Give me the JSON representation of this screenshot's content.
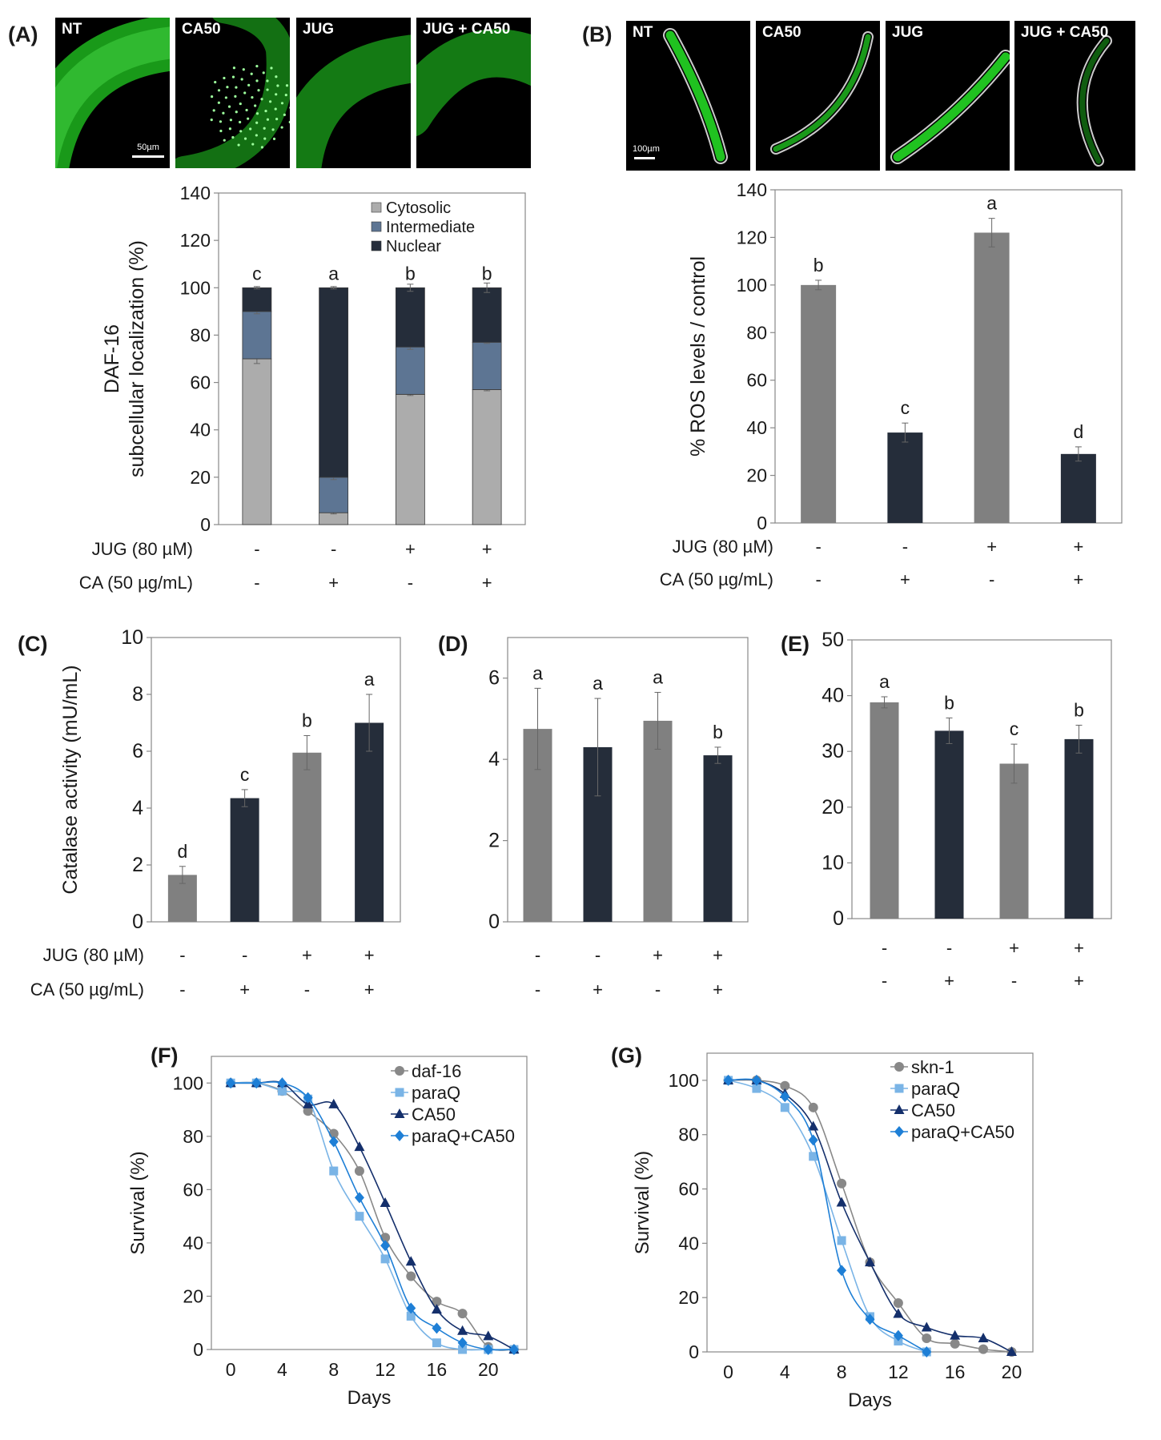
{
  "panel_letters": {
    "A": "(A)",
    "B": "(B)",
    "C": "(C)",
    "D": "(D)",
    "E": "(E)",
    "F": "(F)",
    "G": "(G)"
  },
  "colors": {
    "cytosolic": "#acacac",
    "intermediate": "#5d7593",
    "nuclear": "#252d3a",
    "gray_bar": "#808080",
    "dark_bar": "#252d3a",
    "daf16": "#888888",
    "paraQ": "#7ab4e6",
    "CA50": "#142f6b",
    "paraQCA50": "#1e7fd6",
    "skn1": "#888888",
    "green": "#22cc22"
  },
  "micrographs": {
    "A": {
      "labels": [
        "NT",
        "CA50",
        "JUG",
        "JUG + CA50"
      ],
      "scale_bar": "50µm"
    },
    "B": {
      "labels": [
        "NT",
        "CA50",
        "JUG",
        "JUG + CA50"
      ],
      "scale_bar": "100µm"
    }
  },
  "treatments": {
    "jug_label": "JUG (80 µM)",
    "ca_label": "CA (50 µg/mL)",
    "jug": [
      "-",
      "-",
      "+",
      "+"
    ],
    "ca": [
      "-",
      "+",
      "-",
      "+"
    ]
  },
  "chart_data": [
    {
      "id": "A",
      "type": "bar",
      "stacked": true,
      "ylabel": "DAF-16 subcellular localization (%)",
      "ylabel_lines": [
        "DAF-16",
        "subcellular localization (%)"
      ],
      "ylim": [
        0,
        140
      ],
      "yticks": [
        0,
        20,
        40,
        60,
        80,
        100,
        120,
        140
      ],
      "legend": [
        "Cytosolic",
        "Intermediate",
        "Nuclear"
      ],
      "series": [
        {
          "name": "Cytosolic",
          "values": [
            70,
            5,
            55,
            57
          ],
          "errors": [
            2,
            0.5,
            0.5,
            0.5
          ]
        },
        {
          "name": "Intermediate",
          "values": [
            20,
            15,
            20,
            20
          ],
          "errors": [
            1,
            1,
            1,
            0.5
          ]
        },
        {
          "name": "Nuclear",
          "values": [
            10,
            80,
            25,
            23
          ],
          "errors": [
            0.5,
            0.5,
            1.5,
            2
          ]
        }
      ],
      "letters": [
        "c",
        "a",
        "b",
        "b"
      ]
    },
    {
      "id": "B",
      "type": "bar",
      "ylabel": "% ROS levels / control",
      "ylim": [
        0,
        140
      ],
      "yticks": [
        0,
        20,
        40,
        60,
        80,
        100,
        120,
        140
      ],
      "values": [
        100,
        38,
        122,
        29
      ],
      "errors": [
        2,
        4,
        6,
        3
      ],
      "bar_colors": [
        "gray",
        "dark",
        "gray",
        "dark"
      ],
      "letters": [
        "b",
        "c",
        "a",
        "d"
      ]
    },
    {
      "id": "C",
      "type": "bar",
      "ylabel": "Catalase activity (mU/mL)",
      "ylim": [
        0,
        10
      ],
      "yticks": [
        0,
        2,
        4,
        6,
        8,
        10
      ],
      "values": [
        1.65,
        4.35,
        5.95,
        7.0
      ],
      "errors": [
        0.3,
        0.3,
        0.6,
        1.0
      ],
      "bar_colors": [
        "gray",
        "dark",
        "gray",
        "dark"
      ],
      "letters": [
        "d",
        "c",
        "b",
        "a"
      ]
    },
    {
      "id": "D",
      "type": "bar",
      "ylabel": "",
      "ylim": [
        0,
        7
      ],
      "yticks": [
        0,
        2,
        4,
        6
      ],
      "values": [
        4.75,
        4.3,
        4.95,
        4.1
      ],
      "errors": [
        1.0,
        1.2,
        0.7,
        0.2
      ],
      "bar_colors": [
        "gray",
        "dark",
        "gray",
        "dark"
      ],
      "letters": [
        "a",
        "a",
        "a",
        "b"
      ]
    },
    {
      "id": "E",
      "type": "bar",
      "ylabel": "",
      "ylim": [
        0,
        50
      ],
      "yticks": [
        0,
        10,
        20,
        30,
        40,
        50
      ],
      "values": [
        38.8,
        33.7,
        27.8,
        32.2
      ],
      "errors": [
        1.0,
        2.3,
        3.5,
        2.5
      ],
      "bar_colors": [
        "gray",
        "dark",
        "gray",
        "dark"
      ],
      "letters": [
        "a",
        "b",
        "c",
        "b"
      ]
    },
    {
      "id": "F",
      "type": "line",
      "xlabel": "Days",
      "ylabel": "Survival (%)",
      "xlim": [
        -1.5,
        23
      ],
      "ylim": [
        0,
        110
      ],
      "xticks": [
        0,
        4,
        8,
        12,
        16,
        20
      ],
      "yticks": [
        0,
        20,
        40,
        60,
        80,
        100
      ],
      "series": [
        {
          "name": "daf-16",
          "color_key": "daf16",
          "marker": "circle",
          "x": [
            0,
            2,
            4,
            6,
            8,
            10,
            12,
            14,
            16,
            18,
            20,
            22
          ],
          "y": [
            100,
            100,
            97,
            89.5,
            81,
            67,
            42,
            27.5,
            18,
            13.5,
            1,
            0
          ]
        },
        {
          "name": "paraQ",
          "color_key": "paraQ",
          "marker": "square",
          "x": [
            0,
            2,
            4,
            6,
            8,
            10,
            12,
            14,
            16,
            18,
            20,
            22
          ],
          "y": [
            100,
            100,
            97,
            94,
            67,
            50,
            34,
            12.5,
            2.5,
            0,
            0,
            0
          ]
        },
        {
          "name": "CA50",
          "color_key": "CA50",
          "marker": "triangle",
          "x": [
            0,
            2,
            4,
            6,
            8,
            10,
            12,
            14,
            16,
            18,
            20,
            22
          ],
          "y": [
            100,
            100,
            100,
            92,
            92,
            76,
            55,
            33,
            15,
            7,
            5,
            0
          ]
        },
        {
          "name": "paraQ+CA50",
          "color_key": "paraQCA50",
          "marker": "diamond",
          "x": [
            0,
            2,
            4,
            6,
            8,
            10,
            12,
            14,
            16,
            18,
            20,
            22
          ],
          "y": [
            100,
            100,
            100,
            94.5,
            78,
            57,
            39,
            15.5,
            8,
            2.5,
            0,
            0
          ]
        }
      ]
    },
    {
      "id": "G",
      "type": "line",
      "xlabel": "Days",
      "ylabel": "Survival (%)",
      "xlim": [
        -1.5,
        21.5
      ],
      "ylim": [
        0,
        110
      ],
      "xticks": [
        0,
        4,
        8,
        12,
        16,
        20
      ],
      "yticks": [
        0,
        20,
        40,
        60,
        80,
        100
      ],
      "series": [
        {
          "name": "skn-1",
          "color_key": "skn1",
          "marker": "circle",
          "x": [
            0,
            2,
            4,
            6,
            8,
            10,
            12,
            14,
            16,
            18,
            20
          ],
          "y": [
            100,
            100,
            98,
            90,
            62,
            33,
            18,
            5,
            3,
            1,
            0
          ]
        },
        {
          "name": "paraQ",
          "color_key": "paraQ",
          "marker": "square",
          "x": [
            0,
            2,
            4,
            6,
            8,
            10,
            12,
            14
          ],
          "y": [
            100,
            97,
            90,
            72,
            41,
            13,
            4,
            0
          ]
        },
        {
          "name": "CA50",
          "color_key": "CA50",
          "marker": "triangle",
          "x": [
            0,
            2,
            4,
            6,
            8,
            10,
            12,
            14,
            16,
            18,
            20
          ],
          "y": [
            100,
            100,
            95,
            83,
            55,
            33,
            14,
            9,
            6,
            5,
            0
          ]
        },
        {
          "name": "paraQ+CA50",
          "color_key": "paraQCA50",
          "marker": "diamond",
          "x": [
            0,
            2,
            4,
            6,
            8,
            10,
            12,
            14
          ],
          "y": [
            100,
            100,
            94,
            78,
            30,
            12,
            6,
            0
          ]
        }
      ]
    }
  ]
}
